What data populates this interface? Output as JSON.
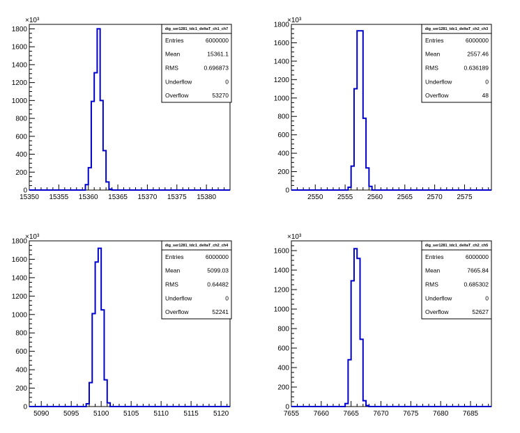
{
  "chart_data": [
    {
      "type": "histogram",
      "name": "dig_ser1281_tdc1_deltaT_ch1_ch7",
      "xlim": [
        15350,
        15384
      ],
      "ylim": [
        0,
        1850
      ],
      "x_ticks": [
        15350,
        15355,
        15360,
        15365,
        15370,
        15375,
        15380
      ],
      "y_ticks": [
        0,
        200,
        400,
        600,
        800,
        1000,
        1200,
        1400,
        1600,
        1800
      ],
      "y_exponent_label": "×10³",
      "bin_width": 0.5,
      "bins": [
        {
          "x": 15359.5,
          "y": 60
        },
        {
          "x": 15360.0,
          "y": 250
        },
        {
          "x": 15360.5,
          "y": 990
        },
        {
          "x": 15361.0,
          "y": 1310
        },
        {
          "x": 15361.5,
          "y": 1800
        },
        {
          "x": 15362.0,
          "y": 1000
        },
        {
          "x": 15362.5,
          "y": 440
        },
        {
          "x": 15363.0,
          "y": 90
        },
        {
          "x": 15363.5,
          "y": 10
        }
      ],
      "stats": {
        "title": "dig_ser1281_tdc1_deltaT_ch1_ch7",
        "rows": [
          {
            "label": "Entries",
            "value": "6000000"
          },
          {
            "label": "Mean",
            "value": "15361.1"
          },
          {
            "label": "RMS",
            "value": "0.696873"
          },
          {
            "label": "Underflow",
            "value": "0"
          },
          {
            "label": "Overflow",
            "value": "53270"
          }
        ]
      }
    },
    {
      "type": "histogram",
      "name": "dig_ser1281_tdc1_deltaT_ch2_ch3",
      "xlim": [
        2546,
        2579.5
      ],
      "ylim": [
        0,
        1800
      ],
      "x_ticks": [
        2550,
        2555,
        2560,
        2565,
        2570,
        2575
      ],
      "y_ticks": [
        0,
        200,
        400,
        600,
        800,
        1000,
        1200,
        1400,
        1600,
        1800
      ],
      "y_exponent_label": "×10³",
      "bin_width": 0.5,
      "bins": [
        {
          "x": 2555.5,
          "y": 30
        },
        {
          "x": 2556.0,
          "y": 260
        },
        {
          "x": 2556.5,
          "y": 1100
        },
        {
          "x": 2557.0,
          "y": 1730
        },
        {
          "x": 2557.5,
          "y": 1730
        },
        {
          "x": 2558.0,
          "y": 780
        },
        {
          "x": 2558.5,
          "y": 240
        },
        {
          "x": 2559.0,
          "y": 40
        }
      ],
      "stats": {
        "title": "dig_ser1281_tdc1_deltaT_ch2_ch3",
        "rows": [
          {
            "label": "Entries",
            "value": "6000000"
          },
          {
            "label": "Mean",
            "value": "2557.46"
          },
          {
            "label": "RMS",
            "value": "0.636189"
          },
          {
            "label": "Underflow",
            "value": "0"
          },
          {
            "label": "Overflow",
            "value": "48"
          }
        ]
      }
    },
    {
      "type": "histogram",
      "name": "dig_ser1281_tdc1_deltaT_ch2_ch4",
      "xlim": [
        5088,
        5121.5
      ],
      "ylim": [
        0,
        1800
      ],
      "x_ticks": [
        5090,
        5095,
        5100,
        5105,
        5110,
        5115,
        5120
      ],
      "y_ticks": [
        0,
        200,
        400,
        600,
        800,
        1000,
        1200,
        1400,
        1600,
        1800
      ],
      "y_exponent_label": "×10³",
      "bin_width": 0.5,
      "bins": [
        {
          "x": 5097.5,
          "y": 30
        },
        {
          "x": 5098.0,
          "y": 260
        },
        {
          "x": 5098.5,
          "y": 1010
        },
        {
          "x": 5099.0,
          "y": 1570
        },
        {
          "x": 5099.5,
          "y": 1720
        },
        {
          "x": 5100.0,
          "y": 1050
        },
        {
          "x": 5100.5,
          "y": 290
        },
        {
          "x": 5101.0,
          "y": 40
        }
      ],
      "stats": {
        "title": "dig_ser1281_tdc1_deltaT_ch2_ch4",
        "rows": [
          {
            "label": "Entries",
            "value": "6000000"
          },
          {
            "label": "Mean",
            "value": "5099.03"
          },
          {
            "label": "RMS",
            "value": "0.64482"
          },
          {
            "label": "Underflow",
            "value": "0"
          },
          {
            "label": "Overflow",
            "value": "52241"
          }
        ]
      }
    },
    {
      "type": "histogram",
      "name": "dig_ser1281_tdc1_deltaT_ch2_ch5",
      "xlim": [
        7655,
        7688.5
      ],
      "ylim": [
        0,
        1700
      ],
      "x_ticks": [
        7655,
        7660,
        7665,
        7670,
        7675,
        7680,
        7685
      ],
      "y_ticks": [
        0,
        200,
        400,
        600,
        800,
        1000,
        1200,
        1400,
        1600
      ],
      "y_exponent_label": "×10³",
      "bin_width": 0.5,
      "bins": [
        {
          "x": 7664.0,
          "y": 30
        },
        {
          "x": 7664.5,
          "y": 480
        },
        {
          "x": 7665.0,
          "y": 1290
        },
        {
          "x": 7665.5,
          "y": 1620
        },
        {
          "x": 7666.0,
          "y": 1520
        },
        {
          "x": 7666.5,
          "y": 690
        },
        {
          "x": 7667.0,
          "y": 60
        },
        {
          "x": 7667.5,
          "y": 10
        }
      ],
      "stats": {
        "title": "dig_ser1281_tdc1_deltaT_ch2_ch5",
        "rows": [
          {
            "label": "Entries",
            "value": "6000000"
          },
          {
            "label": "Mean",
            "value": "7665.84"
          },
          {
            "label": "RMS",
            "value": "0.685302"
          },
          {
            "label": "Underflow",
            "value": "0"
          },
          {
            "label": "Overflow",
            "value": "52627"
          }
        ]
      }
    }
  ],
  "colors": {
    "histogram_line": "#0000cc",
    "axis": "#000000",
    "background": "#ffffff"
  }
}
